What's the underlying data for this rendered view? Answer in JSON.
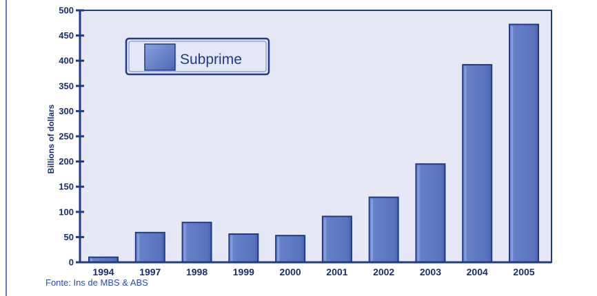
{
  "chart_data": {
    "type": "bar",
    "categories": [
      "1994",
      "1997",
      "1998",
      "1999",
      "2000",
      "2001",
      "2002",
      "2003",
      "2004",
      "2005"
    ],
    "series": [
      {
        "name": "Subprime",
        "values": [
          10,
          59,
          79,
          56,
          53,
          91,
          129,
          195,
          392,
          472
        ]
      }
    ],
    "ylabel": "Billions of dollars",
    "xlabel": "",
    "ylim": [
      0,
      500
    ],
    "yticks": [
      0,
      50,
      100,
      150,
      200,
      250,
      300,
      350,
      400,
      450,
      500
    ],
    "grid": false,
    "legend_position": "top-left",
    "colors": {
      "plot_background": "#e6e8f5",
      "bar_fill": "#6079c2",
      "bar_highlight": "#8aa0dc",
      "axis": "#1e3a8a",
      "text": "#1a2d6e"
    }
  },
  "source": "Fonte: Ins de MBS & ABS"
}
